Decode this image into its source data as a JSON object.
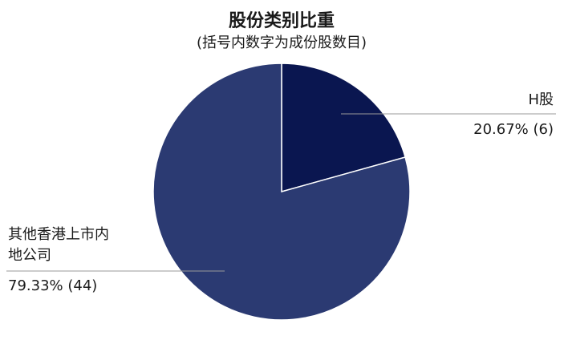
{
  "chart_data": {
    "type": "pie",
    "title": "股份类别比重",
    "subtitle": "(括号内数字为成份股数目)",
    "slices": [
      {
        "name": "H股",
        "label_lines": [
          "H股"
        ],
        "value_label": "20.67% (6)",
        "percent": 20.67,
        "count": 6,
        "color": "#0a1650"
      },
      {
        "name": "其他香港上市内地公司",
        "label_lines": [
          "其他香港上市内",
          "地公司"
        ],
        "value_label": "79.33% (44)",
        "percent": 79.33,
        "count": 44,
        "color": "#2b3a72"
      }
    ]
  }
}
